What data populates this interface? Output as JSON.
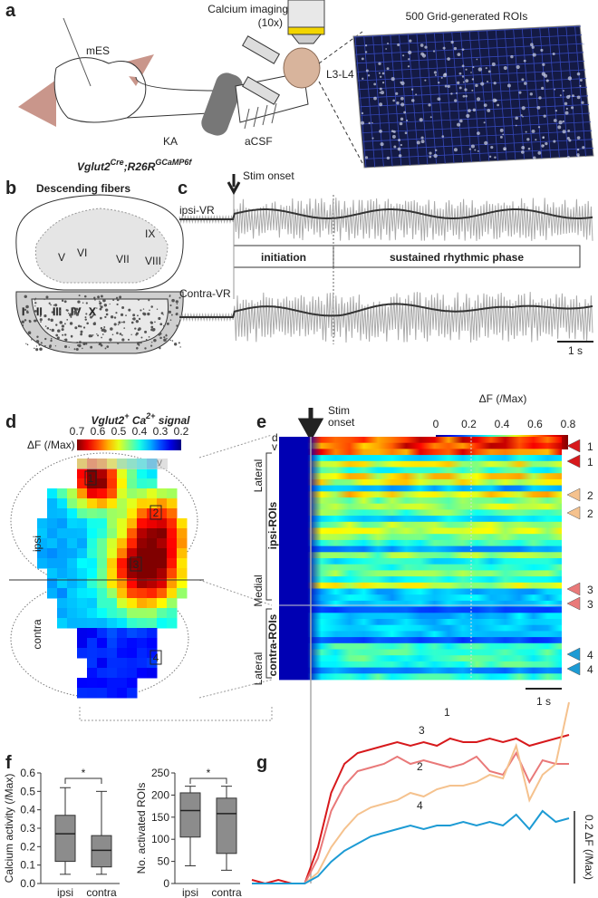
{
  "figure": {
    "panel_labels": [
      "a",
      "b",
      "c",
      "d",
      "e",
      "f",
      "g"
    ],
    "a": {
      "microscope_label": "Calcium imaging",
      "magnification": "(10x)",
      "electrode": "mES",
      "drug": "KA",
      "bath": "aCSF",
      "segment": "L3-L4",
      "roi_title": "500 Grid-generated ROIs",
      "genotype": {
        "base1": "Vglut2",
        "sup1": "Cre",
        "base2": ";R26R",
        "sup2": "GCaMP6f"
      }
    },
    "b": {
      "title": "Descending fibers",
      "laminae_upper": [
        "V",
        "VI",
        "VII",
        "VIII",
        "IX"
      ],
      "laminae_lower": [
        "I",
        "II",
        "III",
        "IV",
        "X"
      ]
    },
    "c": {
      "stim": "Stim onset",
      "ipsi": "ipsi-VR",
      "contra": "Contra-VR",
      "phase1": "initiation",
      "phase2": "sustained rhythmic phase",
      "scale": "1 s"
    },
    "d": {
      "title": {
        "base1": "Vglut2",
        "sup1": "+",
        "base2": " Ca",
        "sup2": "2+",
        "base3": " signal"
      },
      "colorbar_label": "ΔF (/Max)",
      "colorbar_ticks": [
        0.7,
        0.6,
        0.5,
        0.4,
        0.3,
        0.2
      ],
      "dorsal": "d",
      "ventral": "v",
      "ipsi": "ipsi",
      "contra": "contra",
      "regions": [
        "1",
        "2",
        "3",
        "4"
      ]
    },
    "e": {
      "stim": [
        "Stim",
        "onset"
      ],
      "colorbar_label": "ΔF (/Max)",
      "colorbar_ticks": [
        0,
        0.2,
        0.4,
        0.6,
        0.8
      ],
      "dorsal": "d",
      "ventral": "v",
      "side_labels": [
        "Lateral",
        "Medial",
        "Lateral"
      ],
      "groups": [
        "ipsi-ROIs",
        "contra-ROIs"
      ],
      "markers": [
        "1",
        "1",
        "2",
        "2",
        "3",
        "3",
        "4",
        "4"
      ],
      "scale": "1 s"
    }
  },
  "chart_data": [
    {
      "type": "box",
      "ylabel": "Calcium activity (/Max)",
      "categories": [
        "ipsi",
        "contra"
      ],
      "color": "#8c8c8c",
      "boxes": [
        {
          "min": 0.05,
          "q1": 0.12,
          "median": 0.27,
          "q3": 0.37,
          "max": 0.52
        },
        {
          "min": 0.05,
          "q1": 0.09,
          "median": 0.18,
          "q3": 0.26,
          "max": 0.5
        }
      ],
      "ylim": [
        0,
        0.6
      ],
      "yticks": [
        {
          "value": 0,
          "label": "0.0"
        },
        0.1,
        0.2,
        0.3,
        0.4,
        0.5,
        0.6
      ],
      "significance": "*"
    },
    {
      "type": "box",
      "ylabel": "No. activated ROIs",
      "categories": [
        "ipsi",
        "contra"
      ],
      "color": "#8c8c8c",
      "boxes": [
        {
          "min": 40,
          "q1": 105,
          "median": 165,
          "q3": 205,
          "max": 220
        },
        {
          "min": 30,
          "q1": 68,
          "median": 158,
          "q3": 193,
          "max": 220
        }
      ],
      "ylim": [
        0,
        250
      ],
      "yticks": [
        0,
        50,
        100,
        150,
        200,
        250
      ],
      "significance": "*"
    },
    {
      "type": "line",
      "series": [
        {
          "name": "1",
          "color": "#d7191c",
          "values": [
            0.01,
            0,
            0.01,
            0,
            0,
            0.1,
            0.25,
            0.33,
            0.36,
            0.37,
            0.38,
            0.39,
            0.38,
            0.39,
            0.38,
            0.4,
            0.39,
            0.39,
            0.4,
            0.39,
            0.4,
            0.38,
            0.39,
            0.4,
            0.41
          ]
        },
        {
          "name": "3",
          "color": "#e97979",
          "values": [
            0,
            0,
            0,
            0,
            0,
            0.07,
            0.2,
            0.27,
            0.31,
            0.32,
            0.33,
            0.35,
            0.33,
            0.34,
            0.33,
            0.32,
            0.33,
            0.35,
            0.31,
            0.3,
            0.36,
            0.28,
            0.34,
            0.33,
            0.33
          ]
        },
        {
          "name": "2",
          "color": "#f5c28e",
          "values": [
            0,
            0,
            0,
            0,
            0,
            0.03,
            0.1,
            0.15,
            0.19,
            0.21,
            0.22,
            0.23,
            0.25,
            0.24,
            0.26,
            0.27,
            0.27,
            0.28,
            0.3,
            0.29,
            0.38,
            0.23,
            0.3,
            0.33,
            0.5
          ]
        },
        {
          "name": "4",
          "color": "#1d9bd4",
          "values": [
            0,
            0,
            0,
            0,
            0,
            0.02,
            0.06,
            0.09,
            0.11,
            0.13,
            0.14,
            0.15,
            0.16,
            0.15,
            0.16,
            0.16,
            0.17,
            0.16,
            0.17,
            0.16,
            0.19,
            0.15,
            0.2,
            0.17,
            0.18
          ]
        }
      ],
      "scale_bar": {
        "value": 0.2,
        "label": "0.2 ΔF (/Max)"
      }
    }
  ]
}
